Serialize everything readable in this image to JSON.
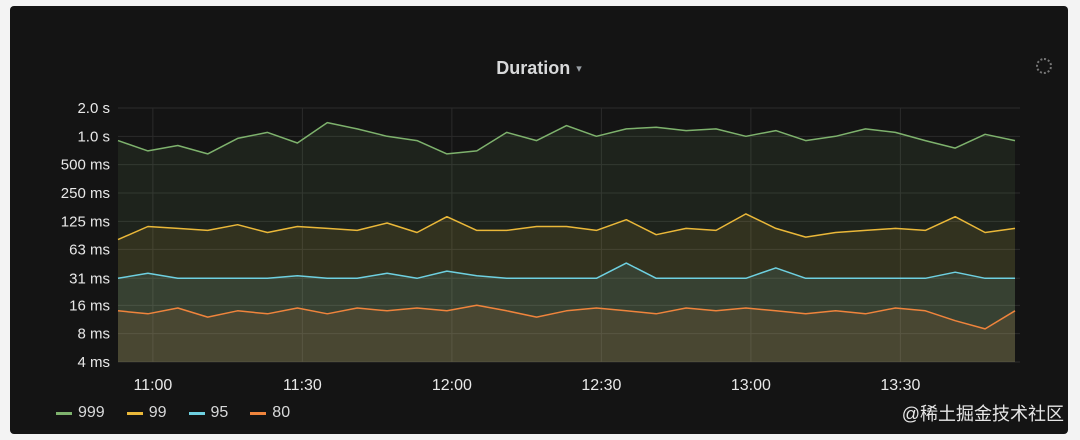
{
  "panel": {
    "title": "Duration",
    "caret": "▾",
    "settings_icon": "spinner-icon"
  },
  "watermark": "@稀土掘金技术社区",
  "chart_data": {
    "type": "line",
    "title": "Duration",
    "xlabel": "",
    "ylabel": "",
    "y_scale": "log2",
    "y_ticks": [
      "2.0 s",
      "1.0 s",
      "500 ms",
      "250 ms",
      "125 ms",
      "63 ms",
      "31 ms",
      "16 ms",
      "8 ms",
      "4 ms"
    ],
    "y_tick_values_ms": [
      2000,
      1000,
      500,
      250,
      125,
      63,
      31,
      16,
      8,
      4
    ],
    "ylim_ms": [
      4,
      2000
    ],
    "x_ticks": [
      "11:00",
      "11:30",
      "12:00",
      "12:30",
      "13:00",
      "13:30"
    ],
    "x_tick_minutes": [
      660,
      690,
      720,
      750,
      780,
      810
    ],
    "xlim_minutes": [
      653,
      834
    ],
    "legend_position": "bottom-left",
    "grid": true,
    "x_minutes": [
      653,
      659,
      665,
      671,
      677,
      683,
      689,
      695,
      701,
      707,
      713,
      719,
      725,
      731,
      737,
      743,
      749,
      755,
      761,
      767,
      773,
      779,
      785,
      791,
      797,
      803,
      809,
      815,
      821,
      827,
      833
    ],
    "series": [
      {
        "name": "999",
        "color": "#7eb26d",
        "values_ms": [
          900,
          700,
          800,
          650,
          950,
          1100,
          850,
          1400,
          1200,
          1000,
          900,
          650,
          700,
          1100,
          900,
          1300,
          1000,
          1200,
          1250,
          1150,
          1200,
          1000,
          1150,
          900,
          1000,
          1200,
          1100,
          900,
          750,
          1050,
          900
        ]
      },
      {
        "name": "99",
        "color": "#eab839",
        "values_ms": [
          80,
          110,
          105,
          100,
          115,
          95,
          110,
          105,
          100,
          120,
          95,
          140,
          100,
          100,
          110,
          110,
          100,
          130,
          90,
          105,
          100,
          150,
          105,
          85,
          95,
          100,
          105,
          100,
          140,
          95,
          105
        ]
      },
      {
        "name": "95",
        "color": "#6ed0e0",
        "values_ms": [
          31,
          35,
          31,
          31,
          31,
          31,
          33,
          31,
          31,
          35,
          31,
          37,
          33,
          31,
          31,
          31,
          31,
          45,
          31,
          31,
          31,
          31,
          40,
          31,
          31,
          31,
          31,
          31,
          36,
          31,
          31
        ]
      },
      {
        "name": "80",
        "color": "#ef843c",
        "values_ms": [
          14,
          13,
          15,
          12,
          14,
          13,
          15,
          13,
          15,
          14,
          15,
          14,
          16,
          14,
          12,
          14,
          15,
          14,
          13,
          15,
          14,
          15,
          14,
          13,
          14,
          13,
          15,
          14,
          11,
          9,
          14
        ]
      }
    ]
  }
}
